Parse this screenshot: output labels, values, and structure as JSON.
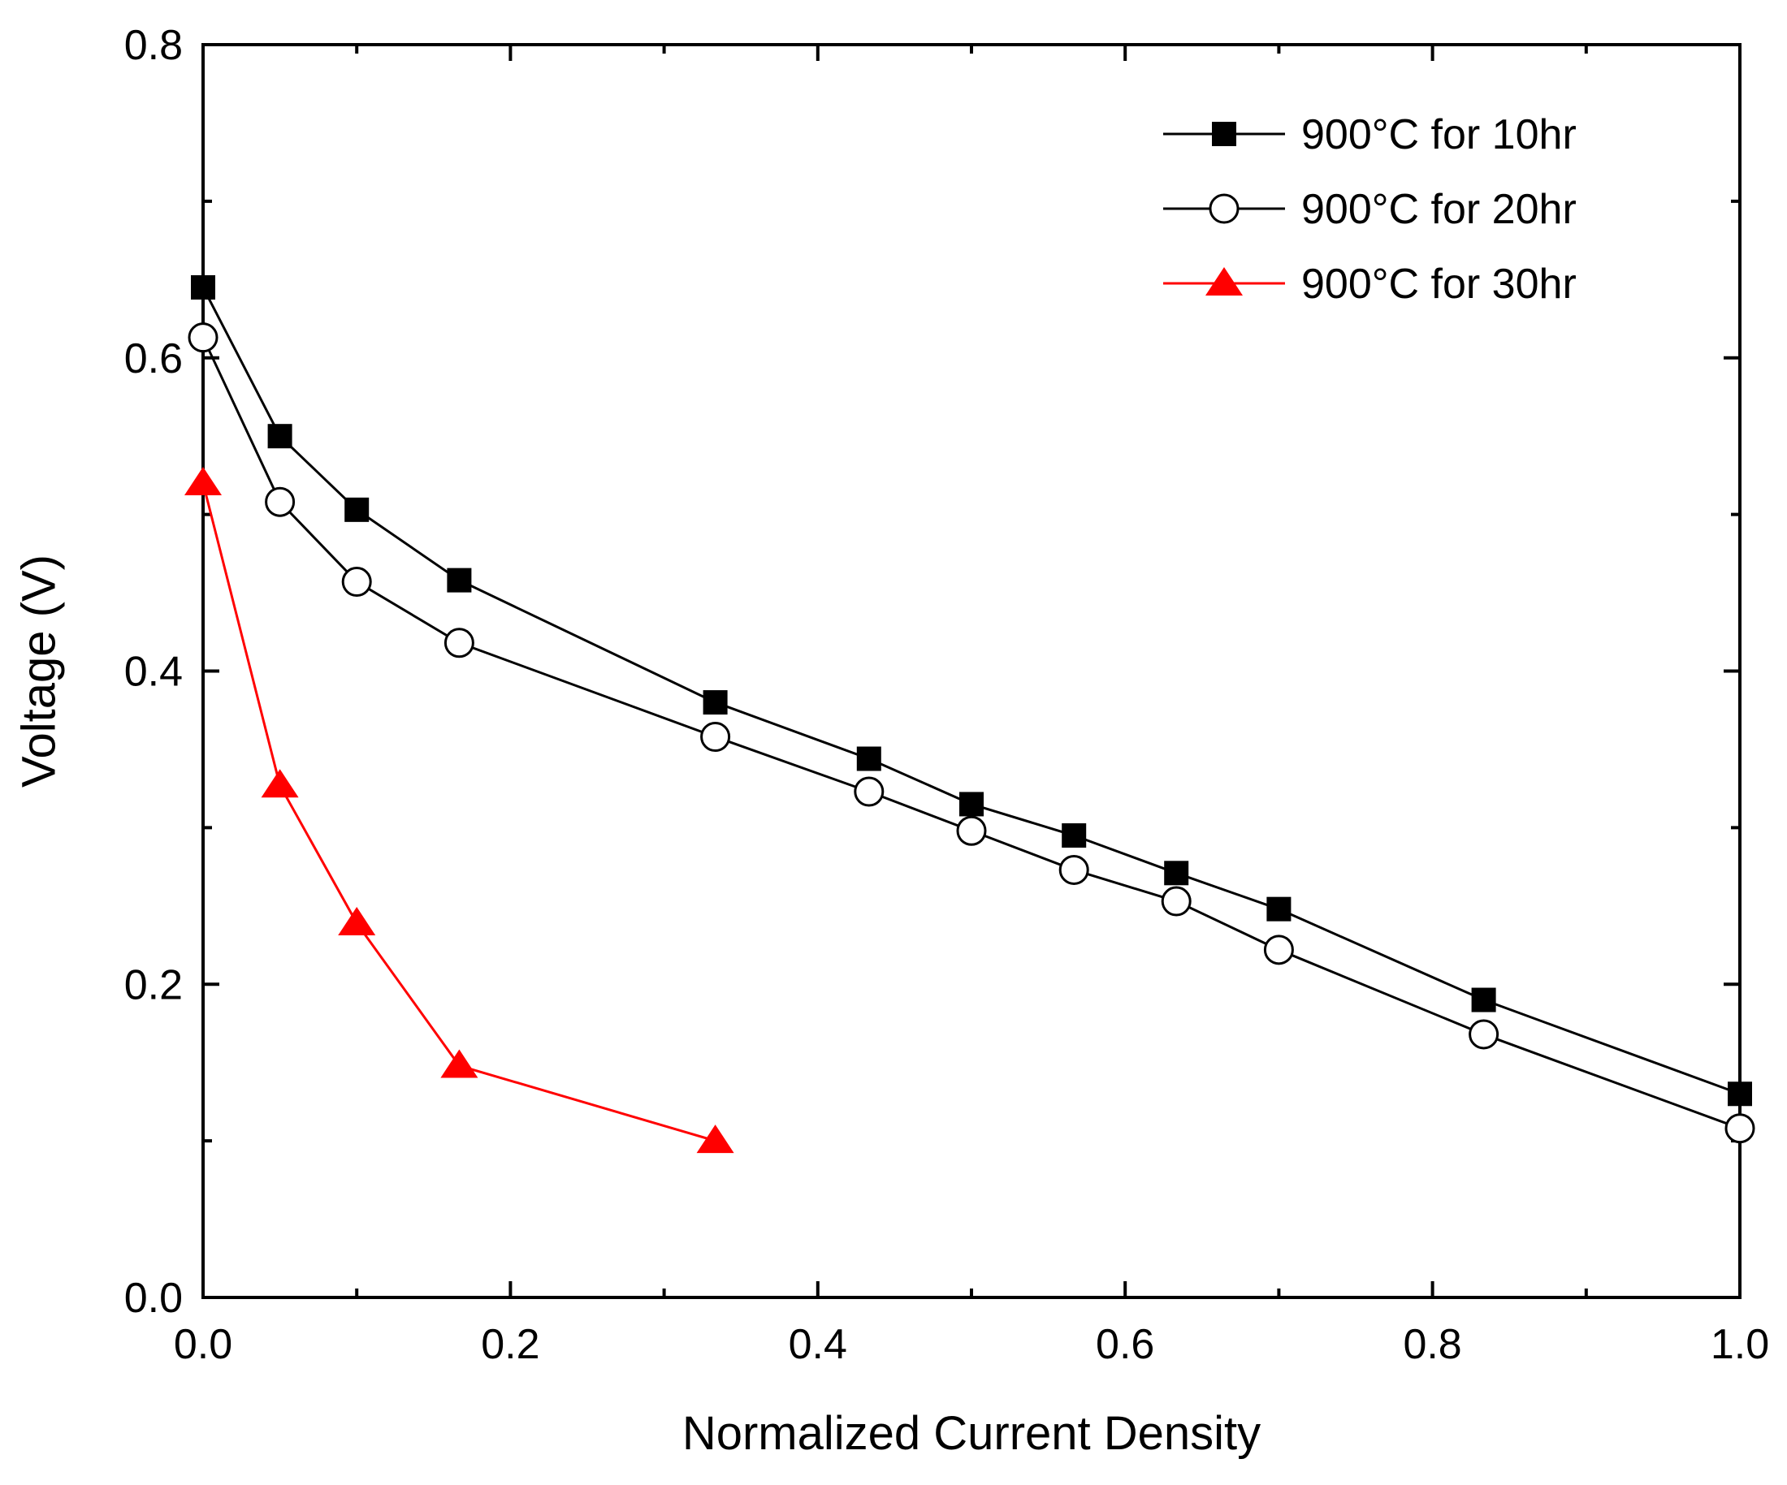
{
  "chart_data": {
    "type": "line",
    "title": "",
    "xlabel": "Normalized Current Density",
    "ylabel": "Voltage (V)",
    "xlim": [
      0.0,
      1.0
    ],
    "ylim": [
      0.0,
      0.8
    ],
    "xticks": [
      "0.0",
      "0.2",
      "0.4",
      "0.6",
      "0.8",
      "1.0"
    ],
    "yticks": [
      "0.0",
      "0.2",
      "0.4",
      "0.6",
      "0.8"
    ],
    "grid": false,
    "legend_position": "top-right",
    "series": [
      {
        "name": "900°C for 10hr",
        "marker": "filled-square",
        "color": "#000000",
        "x": [
          0.0,
          0.05,
          0.1,
          0.1667,
          0.3333,
          0.4333,
          0.5,
          0.5667,
          0.6333,
          0.7,
          0.8333,
          1.0
        ],
        "y": [
          0.645,
          0.55,
          0.503,
          0.458,
          0.38,
          0.344,
          0.315,
          0.295,
          0.271,
          0.248,
          0.19,
          0.13
        ]
      },
      {
        "name": "900°C for 20hr",
        "marker": "open-circle",
        "color": "#000000",
        "x": [
          0.0,
          0.05,
          0.1,
          0.1667,
          0.3333,
          0.4333,
          0.5,
          0.5667,
          0.6333,
          0.7,
          0.8333,
          1.0
        ],
        "y": [
          0.613,
          0.508,
          0.457,
          0.418,
          0.358,
          0.323,
          0.298,
          0.273,
          0.253,
          0.222,
          0.168,
          0.108
        ]
      },
      {
        "name": "900°C for 30hr",
        "marker": "filled-triangle",
        "color": "#ff0000",
        "x": [
          0.0,
          0.05,
          0.1,
          0.1667,
          0.3333
        ],
        "y": [
          0.52,
          0.327,
          0.239,
          0.148,
          0.1
        ]
      }
    ]
  }
}
